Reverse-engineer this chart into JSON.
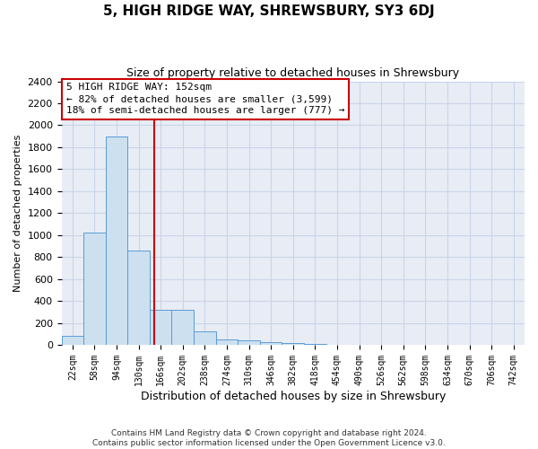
{
  "title": "5, HIGH RIDGE WAY, SHREWSBURY, SY3 6DJ",
  "subtitle": "Size of property relative to detached houses in Shrewsbury",
  "xlabel": "Distribution of detached houses by size in Shrewsbury",
  "ylabel": "Number of detached properties",
  "footer_line1": "Contains HM Land Registry data © Crown copyright and database right 2024.",
  "footer_line2": "Contains public sector information licensed under the Open Government Licence v3.0.",
  "bin_labels": [
    "22sqm",
    "58sqm",
    "94sqm",
    "130sqm",
    "166sqm",
    "202sqm",
    "238sqm",
    "274sqm",
    "310sqm",
    "346sqm",
    "382sqm",
    "418sqm",
    "454sqm",
    "490sqm",
    "526sqm",
    "562sqm",
    "598sqm",
    "634sqm",
    "670sqm",
    "706sqm",
    "742sqm"
  ],
  "bar_values": [
    80,
    1020,
    1900,
    860,
    320,
    315,
    120,
    50,
    40,
    25,
    15,
    10,
    0,
    0,
    0,
    0,
    0,
    0,
    0,
    0,
    0
  ],
  "bar_color": "#cce0f0",
  "bar_edge_color": "#5b9bd5",
  "grid_color": "#c8d4e8",
  "background_color": "#e8edf5",
  "annotation_line1": "5 HIGH RIDGE WAY: 152sqm",
  "annotation_line2": "← 82% of detached houses are smaller (3,599)",
  "annotation_line3": "18% of semi-detached houses are larger (777) →",
  "annotation_box_edgecolor": "#cc0000",
  "vline_x": 3.72,
  "vline_color": "#cc0000",
  "ylim": [
    0,
    2400
  ],
  "ytick_step": 200,
  "title_fontsize": 11,
  "subtitle_fontsize": 9,
  "xlabel_fontsize": 9,
  "ylabel_fontsize": 8,
  "tick_fontsize": 8,
  "xtick_fontsize": 7,
  "footer_fontsize": 6.5
}
